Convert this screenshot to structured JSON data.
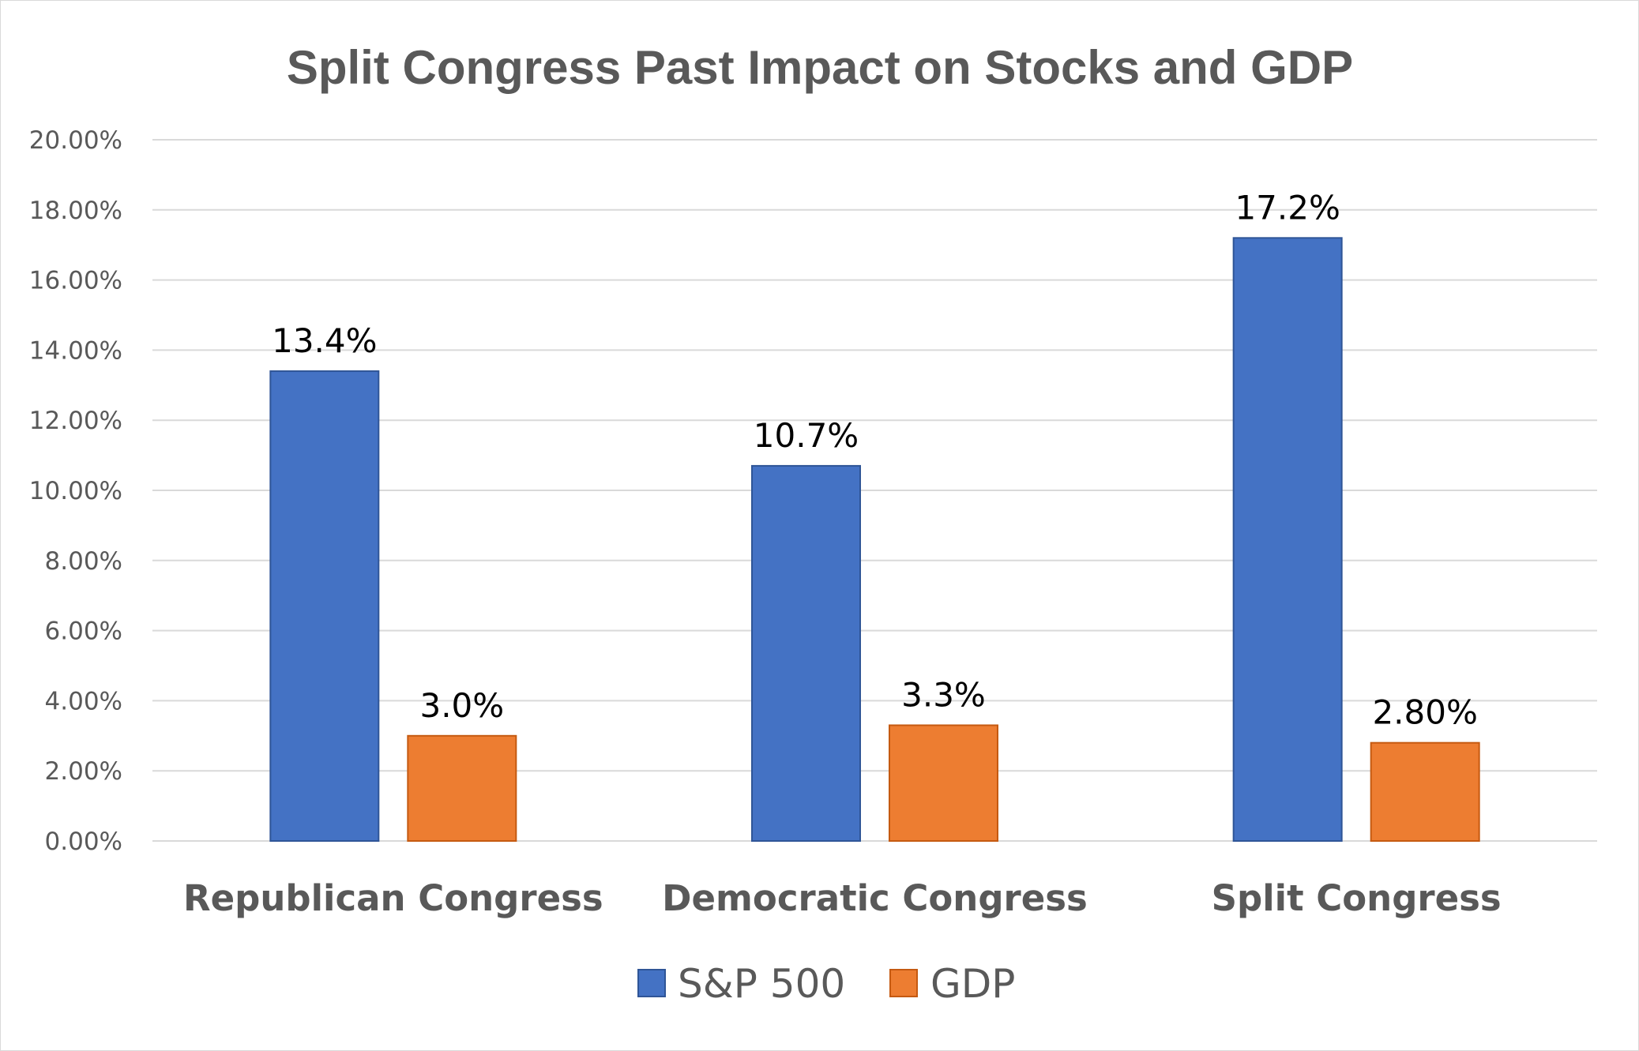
{
  "chart_data": {
    "type": "bar",
    "title": "Split Congress Past Impact on Stocks and GDP",
    "xlabel": "",
    "ylabel": "",
    "categories": [
      "Republican Congress",
      "Democratic Congress",
      "Split Congress"
    ],
    "series": [
      {
        "name": "S&P 500",
        "values": [
          13.4,
          10.7,
          17.2
        ],
        "data_labels": [
          "13.4%",
          "10.7%",
          "17.2%"
        ],
        "color": "#4472C4"
      },
      {
        "name": "GDP",
        "values": [
          3.0,
          3.3,
          2.8
        ],
        "data_labels": [
          "3.0%",
          "3.3%",
          "2.80%"
        ],
        "color": "#ED7D31"
      }
    ],
    "ylim": [
      0,
      20
    ],
    "y_ticks": [
      "0.00%",
      "2.00%",
      "4.00%",
      "6.00%",
      "8.00%",
      "10.00%",
      "12.00%",
      "14.00%",
      "16.00%",
      "18.00%",
      "20.00%"
    ],
    "grid": true,
    "legend_position": "bottom"
  }
}
